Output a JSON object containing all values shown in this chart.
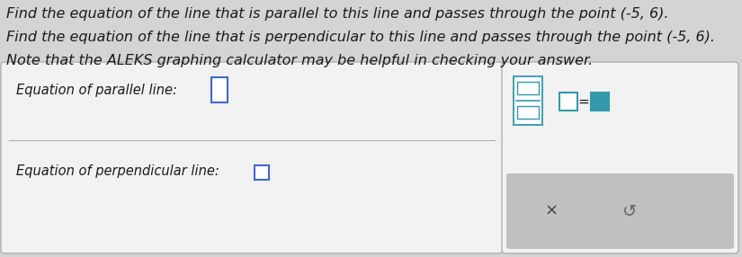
{
  "line1": "Find the equation of the line that is parallel to this line and passes through the point (-5, 6).",
  "line2": "Find the equation of the line that is perpendicular to this line and passes through the point (-5, 6).",
  "line3": "Note that the ALEKS graphing calculator may be helpful in checking your answer.",
  "parallel_label": "Equation of parallel line:",
  "perpendicular_label": "Equation of perpendicular line:",
  "bg_color": "#d4d4d4",
  "box_bg": "#f2f2f2",
  "box_border": "#b0b0b0",
  "lower_bar_bg": "#c0c0c0",
  "text_color": "#1a1a1a",
  "input_box_color": "#4466cc",
  "teal_box_color": "#3399aa",
  "x_color": "#444444",
  "refresh_color": "#666666",
  "font_size_body": 11.5,
  "font_size_label": 10.5
}
